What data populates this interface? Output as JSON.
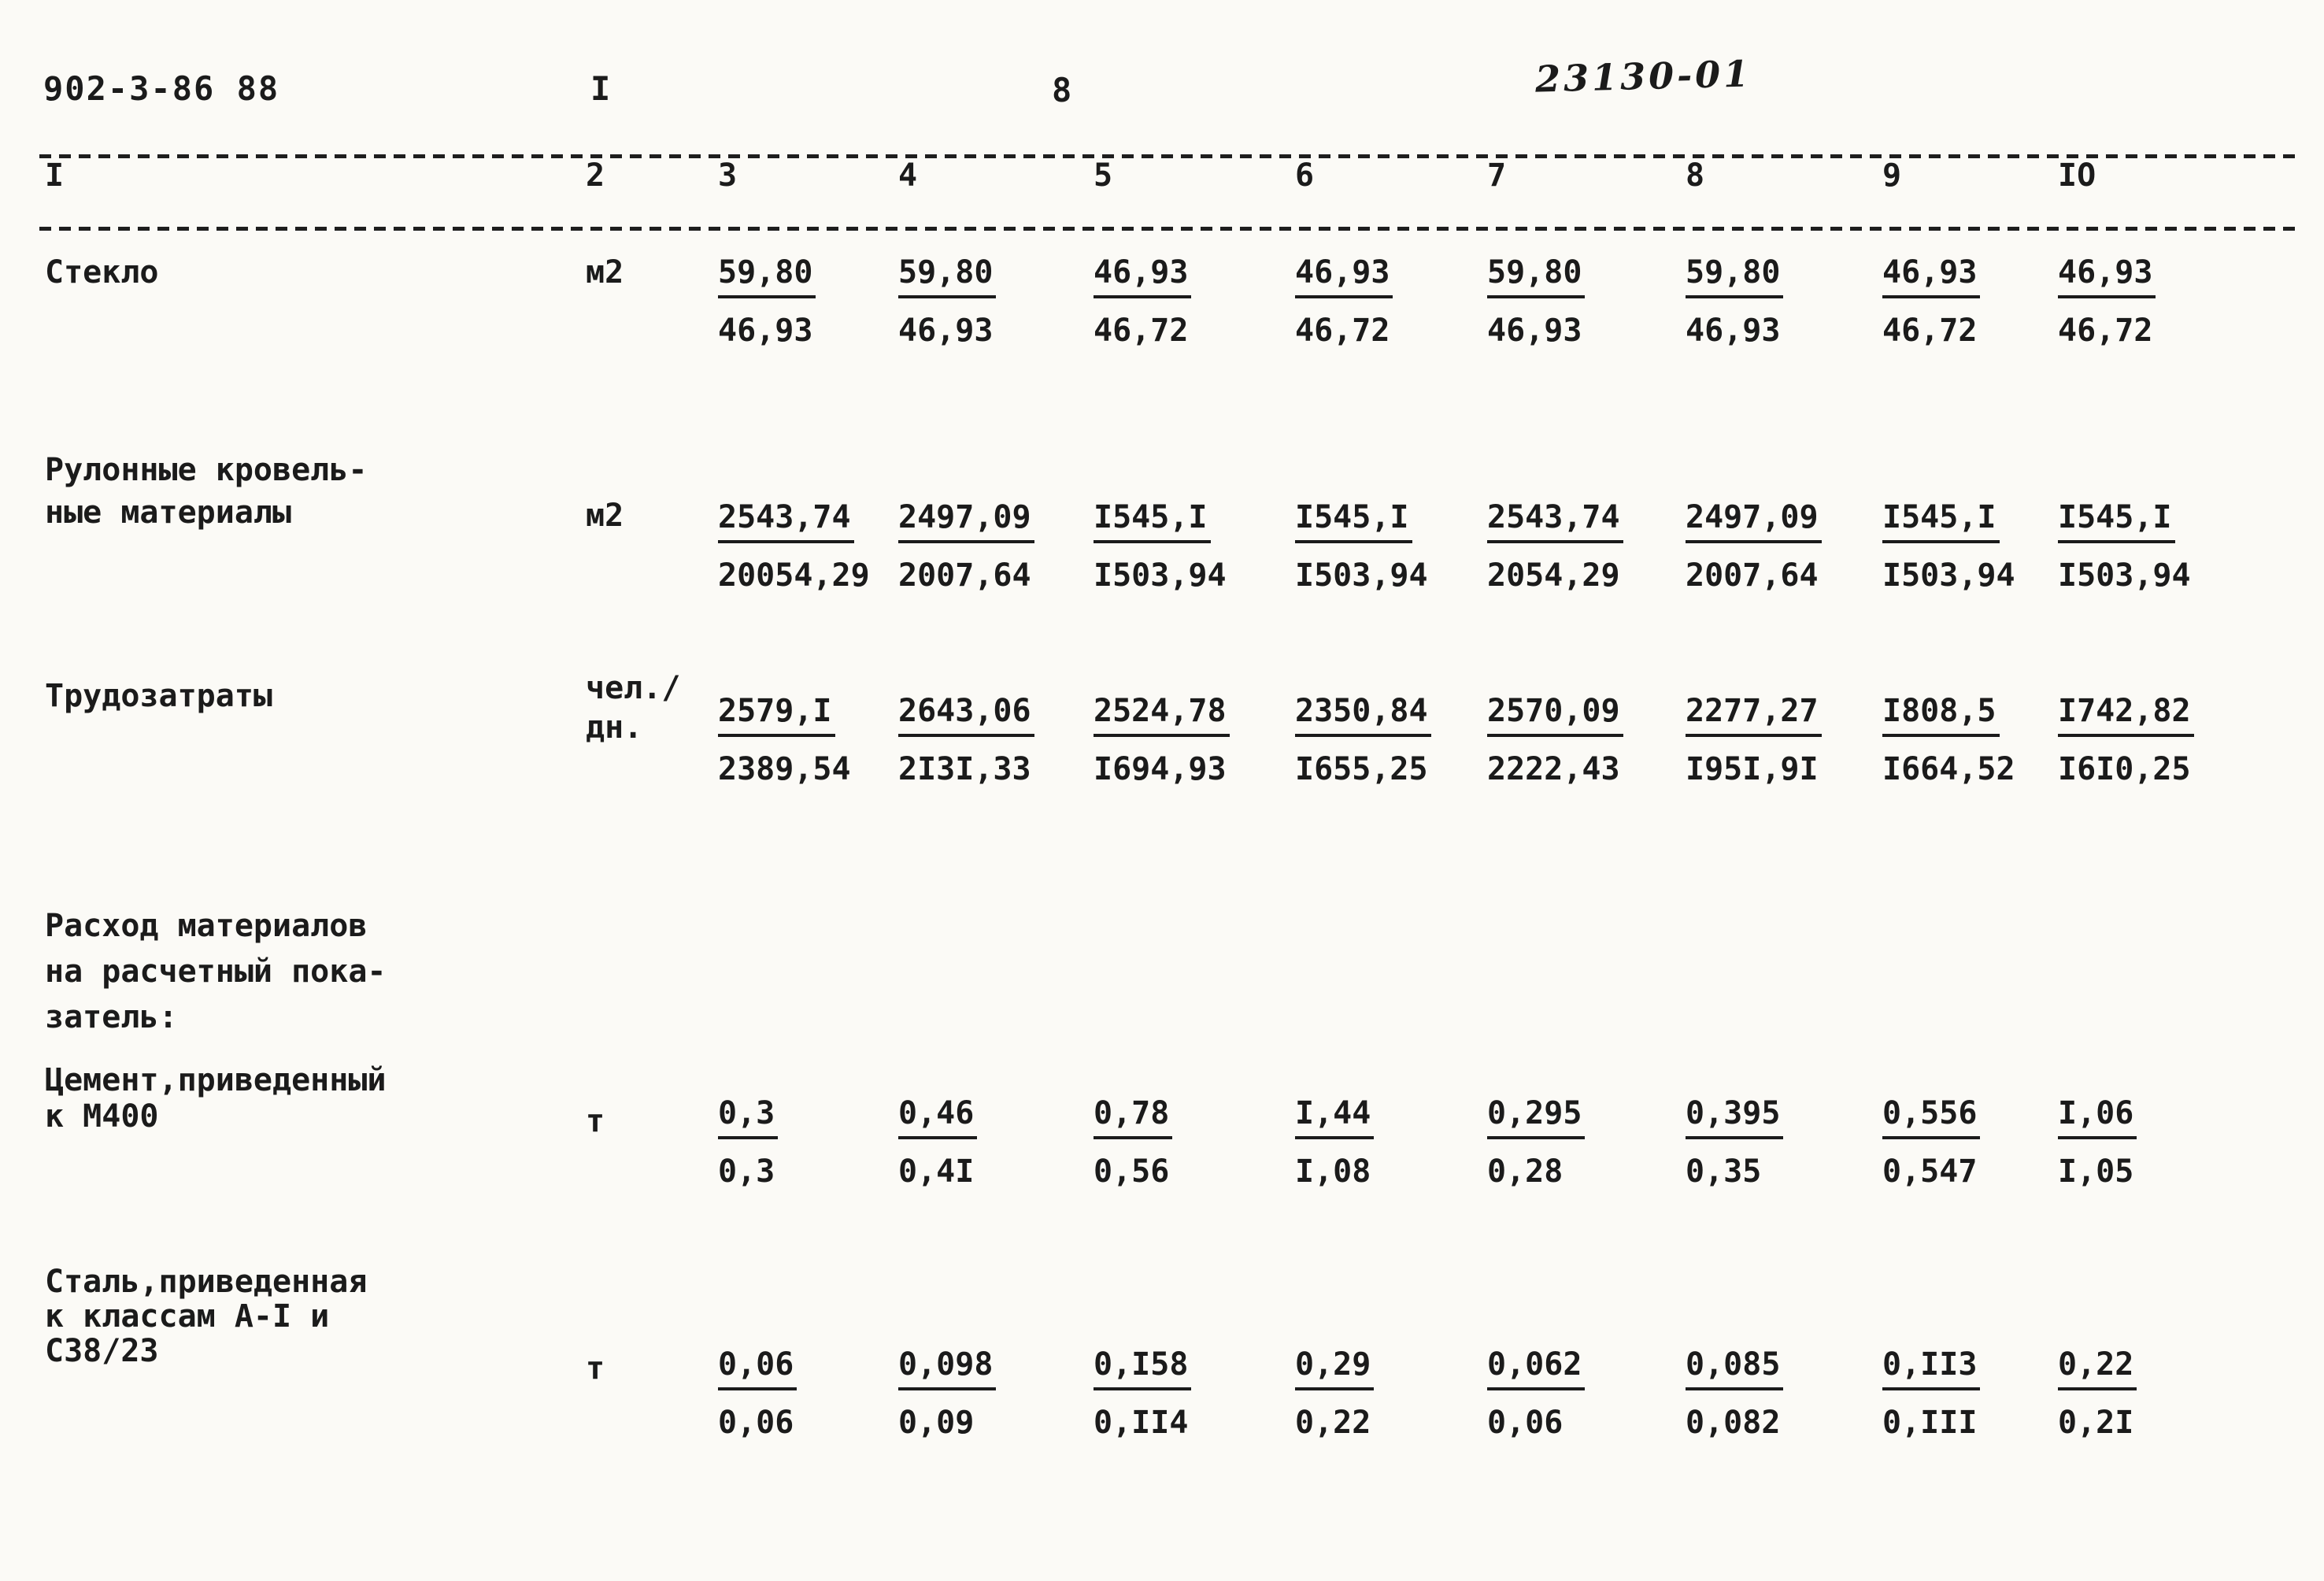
{
  "page": {
    "doc_number": "902-3-86 88",
    "sheet_marker": "I",
    "page_number": "8",
    "stamp": "23130-01"
  },
  "table": {
    "column_numbers": [
      "I",
      "2",
      "3",
      "4",
      "5",
      "6",
      "7",
      "8",
      "9",
      "IO"
    ],
    "rows": [
      {
        "label_lines": [
          "Стекло"
        ],
        "unit_lines": [
          "м2"
        ],
        "top": [
          "59,80",
          "59,80",
          "46,93",
          "46,93",
          "59,80",
          "59,80",
          "46,93",
          "46,93"
        ],
        "bottom": [
          "46,93",
          "46,93",
          "46,72",
          "46,72",
          "46,93",
          "46,93",
          "46,72",
          "46,72"
        ]
      },
      {
        "label_lines": [
          "Рулонные кровель-",
          "ные материалы"
        ],
        "unit_lines": [
          "м2"
        ],
        "top": [
          "2543,74",
          "2497,09",
          "I545,I",
          "I545,I",
          "2543,74",
          "2497,09",
          "I545,I",
          "I545,I"
        ],
        "bottom": [
          "20054,29",
          "2007,64",
          "I503,94",
          "I503,94",
          "2054,29",
          "2007,64",
          "I503,94",
          "I503,94"
        ]
      },
      {
        "label_lines": [
          "Трудозатраты"
        ],
        "unit_lines": [
          "чел./",
          "дн."
        ],
        "top": [
          "2579,I",
          "2643,06",
          "2524,78",
          "2350,84",
          "2570,09",
          "2277,27",
          "I808,5",
          "I742,82"
        ],
        "bottom": [
          "2389,54",
          "2I3I,33",
          "I694,93",
          "I655,25",
          "2222,43",
          "I95I,9I",
          "I664,52",
          "I6I0,25"
        ]
      },
      {
        "label_lines": [
          "Расход материалов",
          "на расчетный пока-",
          "затель:"
        ],
        "unit_lines": [],
        "top": [],
        "bottom": []
      },
      {
        "label_lines": [
          "Цемент,приведенный",
          "к М400"
        ],
        "unit_lines": [
          "т"
        ],
        "top": [
          "0,3",
          "0,46",
          "0,78",
          "I,44",
          "0,295",
          "0,395",
          "0,556",
          "I,06"
        ],
        "bottom": [
          "0,3",
          "0,4I",
          "0,56",
          "I,08",
          "0,28",
          "0,35",
          "0,547",
          "I,05"
        ]
      },
      {
        "label_lines": [
          "Сталь,приведенная",
          "к классам А-I и",
          "С38/23"
        ],
        "unit_lines": [
          "т"
        ],
        "top": [
          "0,06",
          "0,098",
          "0,I58",
          "0,29",
          "0,062",
          "0,085",
          "0,II3",
          "0,22"
        ],
        "bottom": [
          "0,06",
          "0,09",
          "0,II4",
          "0,22",
          "0,06",
          "0,082",
          "0,III",
          "0,2I"
        ]
      }
    ]
  }
}
